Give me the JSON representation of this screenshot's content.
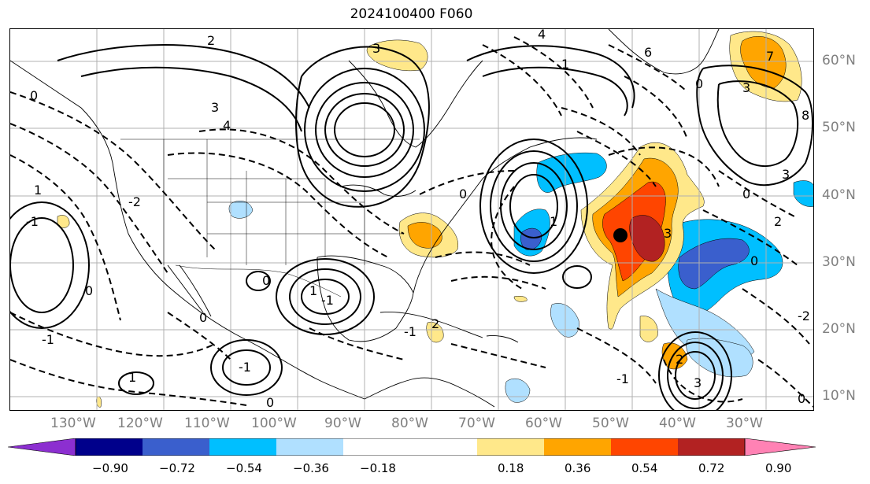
{
  "title": "2024100400 F060",
  "lon_labels": [
    "130°W",
    "120°W",
    "110°W",
    "100°W",
    "90°W",
    "80°W",
    "70°W",
    "60°W",
    "50°W",
    "40°W",
    "30°W"
  ],
  "lat_labels": [
    "60°N",
    "50°N",
    "40°N",
    "30°N",
    "20°N",
    "10°N"
  ],
  "colorbar": {
    "labels": [
      "−0.90",
      "−0.72",
      "−0.54",
      "−0.36",
      "−0.18",
      "0.18",
      "0.36",
      "0.54",
      "0.72",
      "0.90"
    ],
    "colors": [
      "#8c2fd0",
      "#00008b",
      "#3a5fcd",
      "#00bfff",
      "#b0e0ff",
      "#ffffff",
      "#ffe88a",
      "#ffa500",
      "#ff4500",
      "#b22222",
      "#ff82b4"
    ]
  },
  "contour_labels": [
    "3",
    "4",
    "3",
    "2",
    "0",
    "1",
    "-1",
    "0",
    "0",
    "1",
    "2",
    "3",
    "6",
    "7",
    "1",
    "8",
    "4",
    "0",
    "-1",
    "3",
    "0",
    "-1",
    "1",
    "-2",
    "0",
    "3",
    "-1",
    "-1",
    "-2",
    "3",
    "2",
    "0",
    "-1",
    "2",
    "0",
    "1",
    "0",
    "0"
  ]
}
